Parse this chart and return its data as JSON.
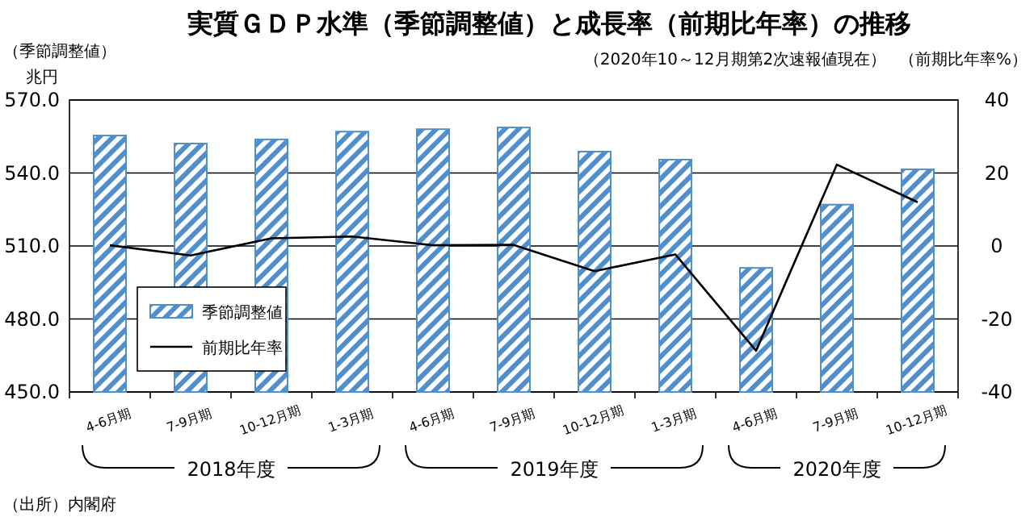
{
  "chart_data": {
    "type": "bar",
    "title": "実質ＧＤＰ水準（季節調整値）と成長率（前期比年率）の推移",
    "subtitle": "（2020年10～12月期第2次速報値現在）",
    "ylabel": "（季節調整値）",
    "y2label": "（前期比年率%）",
    "annotations": [
      "兆円",
      "2018年度",
      "2019年度",
      "2020年度",
      "（出所）内閣府"
    ],
    "categories": [
      "4-6月期",
      "7-9月期",
      "10-12月期",
      "1-3月期",
      "4-6月期",
      "7-9月期",
      "10-12月期",
      "1-3月期",
      "4-6月期",
      "7-9月期",
      "10-12月期"
    ],
    "series": [
      {
        "name": "季節調整値",
        "color": "#4f8fcc",
        "values": [
          555.4,
          552.1,
          553.8,
          557.0,
          558.0,
          558.7,
          548.8,
          545.5,
          501.0,
          527.0,
          541.5
        ]
      },
      {
        "name": "前期比年率",
        "type": "line",
        "axis": "y2",
        "color": "#000000",
        "values": [
          0.2,
          -2.6,
          2.1,
          2.6,
          0.2,
          0.3,
          -6.9,
          -2.3,
          -28.7,
          22.3,
          12.0
        ]
      }
    ],
    "ylim": [
      450,
      570
    ],
    "yticks": [
      {
        "value": 450,
        "label": "450.0"
      },
      {
        "value": 480,
        "label": "480.0"
      },
      {
        "value": 510,
        "label": "510.0"
      },
      {
        "value": 540,
        "label": "540.0"
      },
      {
        "value": 570,
        "label": "570.0"
      }
    ],
    "y2lim": [
      -40,
      40
    ],
    "y2ticks": [
      -40,
      -20,
      0,
      20,
      40
    ],
    "grid": "y",
    "legend": "bottom left",
    "marker": "none",
    "line_style": "solid"
  }
}
